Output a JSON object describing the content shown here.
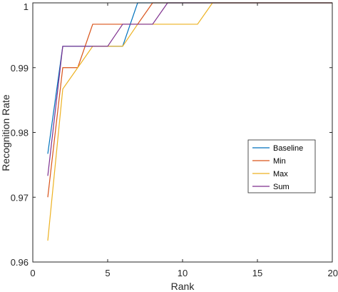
{
  "chart_data": {
    "type": "line",
    "xlabel": "Rank",
    "ylabel": "Recognition Rate",
    "xlim": [
      0,
      20
    ],
    "ylim": [
      0.96,
      1.0
    ],
    "xticks": [
      0,
      5,
      10,
      15,
      20
    ],
    "xtick_labels": [
      "0",
      "5",
      "10",
      "15",
      "20"
    ],
    "yticks": [
      0.96,
      0.97,
      0.98,
      0.99,
      1.0
    ],
    "ytick_labels": [
      "0.96",
      "0.97",
      "0.98",
      "0.99",
      "1"
    ],
    "grid": false,
    "legend_position": "right",
    "x": [
      1,
      2,
      3,
      4,
      5,
      6,
      7,
      8,
      9,
      10,
      11,
      12,
      13,
      14,
      15,
      16,
      17,
      18,
      19,
      20
    ],
    "series": [
      {
        "name": "Baseline",
        "color": "#0072BD",
        "values": [
          0.9767,
          0.9933,
          0.9933,
          0.9933,
          0.9933,
          0.9933,
          1.0,
          1.0,
          1.0,
          1.0,
          1.0,
          1.0,
          1.0,
          1.0,
          1.0,
          1.0,
          1.0,
          1.0,
          1.0,
          1.0
        ]
      },
      {
        "name": "Min",
        "color": "#D95319",
        "values": [
          0.97,
          0.99,
          0.99,
          0.9967,
          0.9967,
          0.9967,
          0.9967,
          1.0,
          1.0,
          1.0,
          1.0,
          1.0,
          1.0,
          1.0,
          1.0,
          1.0,
          1.0,
          1.0,
          1.0,
          1.0
        ]
      },
      {
        "name": "Max",
        "color": "#EDB120",
        "values": [
          0.9633,
          0.9867,
          0.99,
          0.9933,
          0.9933,
          0.9933,
          0.9967,
          0.9967,
          0.9967,
          0.9967,
          0.9967,
          1.0,
          1.0,
          1.0,
          1.0,
          1.0,
          1.0,
          1.0,
          1.0,
          1.0
        ]
      },
      {
        "name": "Sum",
        "color": "#7E2F8E",
        "values": [
          0.9733,
          0.9933,
          0.9933,
          0.9933,
          0.9933,
          0.9967,
          0.9967,
          0.9967,
          1.0,
          1.0,
          1.0,
          1.0,
          1.0,
          1.0,
          1.0,
          1.0,
          1.0,
          1.0,
          1.0,
          1.0
        ]
      }
    ]
  }
}
